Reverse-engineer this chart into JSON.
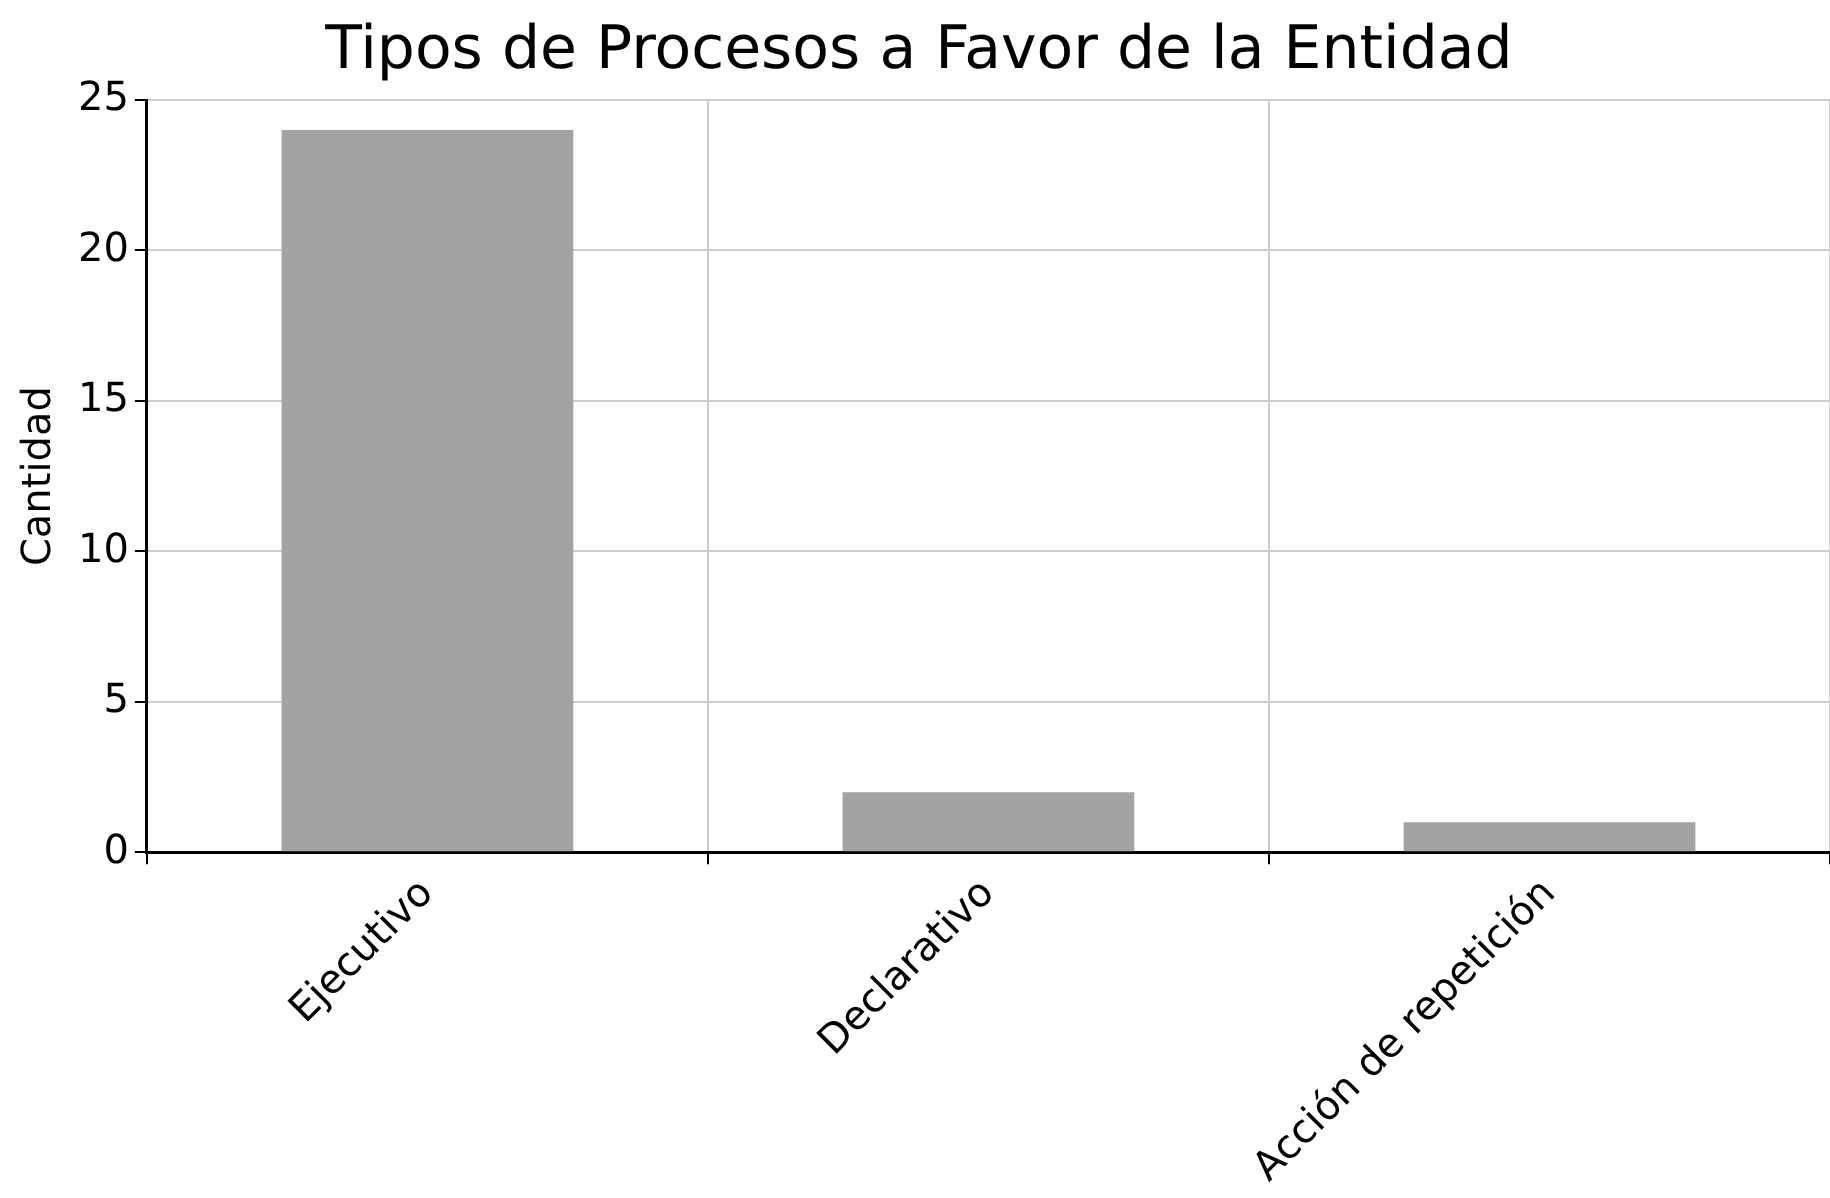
{
  "chart_data": {
    "type": "bar",
    "title": "Tipos de Procesos a Favor de la Entidad",
    "ylabel": "Cantidad",
    "categories": [
      "Ejecutivo",
      "Declarativo",
      "Acción de repetición"
    ],
    "values": [
      24,
      2,
      1
    ],
    "color": "#a3a3a3",
    "ylim": [
      0,
      25
    ],
    "yticks": [
      0,
      5,
      10,
      15,
      20,
      25
    ],
    "grid": true,
    "legend": false
  }
}
